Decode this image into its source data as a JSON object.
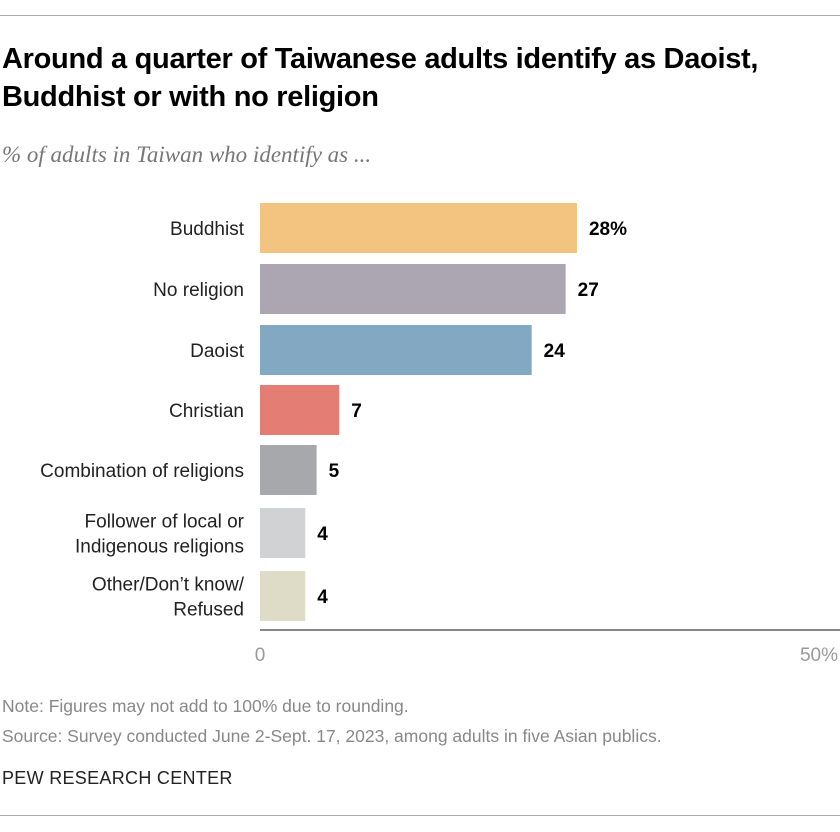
{
  "title": "Around a quarter of Taiwanese adults identify as Daoist, Buddhist or with no religion",
  "subtitle": "% of adults in Taiwan who identify as ...",
  "chart_data": {
    "type": "bar",
    "orientation": "horizontal",
    "categories": [
      [
        "Buddhist"
      ],
      [
        "No religion"
      ],
      [
        "Daoist"
      ],
      [
        "Christian"
      ],
      [
        "Combination of religions"
      ],
      [
        "Follower of local or",
        "Indigenous religions"
      ],
      [
        "Other/Don’t know/",
        "Refused"
      ]
    ],
    "values": [
      28,
      27,
      24,
      7,
      5,
      4,
      4
    ],
    "value_labels": [
      "28%",
      "27",
      "24",
      "7",
      "5",
      "4",
      "4"
    ],
    "colors": [
      "#f2c47f",
      "#aca5b2",
      "#83a8c1",
      "#e47e74",
      "#a7a8ac",
      "#d1d2d4",
      "#dedbc6"
    ],
    "xlim": [
      0,
      50
    ],
    "tick_labels": [
      "0",
      "50%"
    ],
    "grid": false
  },
  "note": "Note: Figures may not add to 100% due to rounding.",
  "source": "Source: Survey conducted June 2-Sept. 17, 2023, among adults in five Asian publics.",
  "brand": "PEW RESEARCH CENTER"
}
